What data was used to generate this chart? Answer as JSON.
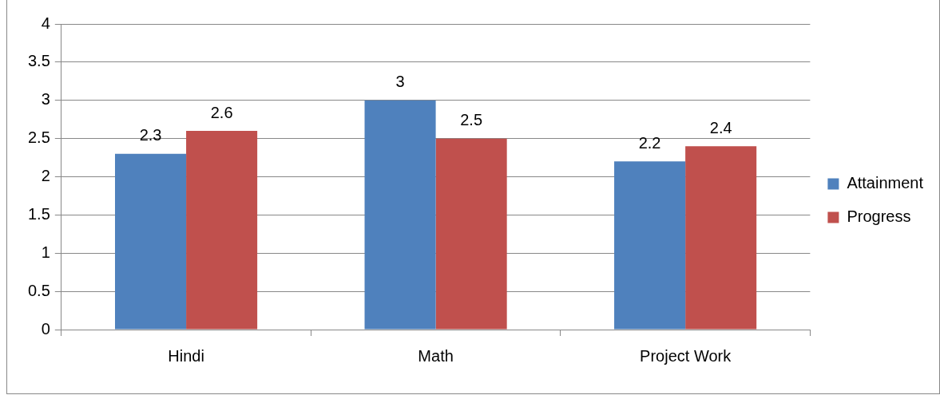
{
  "chart_data": {
    "type": "bar",
    "categories": [
      "Hindi",
      "Math",
      "Project Work"
    ],
    "series": [
      {
        "name": "Attainment",
        "color": "#4f81bd",
        "values": [
          2.3,
          3,
          2.2
        ]
      },
      {
        "name": "Progress",
        "color": "#c0504d",
        "values": [
          2.6,
          2.5,
          2.4
        ]
      }
    ],
    "ylim": [
      0,
      4
    ],
    "yticks": [
      0,
      0.5,
      1,
      1.5,
      2,
      2.5,
      3,
      3.5,
      4
    ],
    "grid": "y",
    "legend": "right",
    "data_labels": true
  }
}
